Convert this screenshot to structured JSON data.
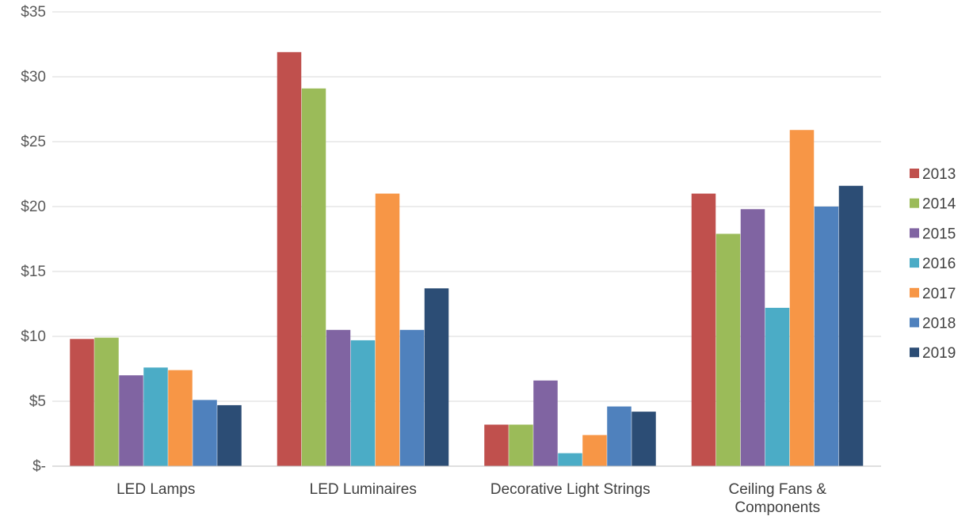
{
  "chart_data": {
    "type": "bar",
    "title": "",
    "xlabel": "",
    "ylabel": "",
    "ylim": [
      0,
      35
    ],
    "yticks": [
      0,
      5,
      10,
      15,
      20,
      25,
      30,
      35
    ],
    "ytick_labels": [
      "$-",
      "$5",
      "$10",
      "$15",
      "$20",
      "$25",
      "$30",
      "$35"
    ],
    "grid": true,
    "legend_position": "right",
    "categories": [
      [
        "LED Lamps"
      ],
      [
        "LED Luminaires"
      ],
      [
        "Decorative Light Strings"
      ],
      [
        "Ceiling Fans &",
        "Components"
      ]
    ],
    "series": [
      {
        "name": "2013",
        "color": "#c0504d",
        "values": [
          9.8,
          31.9,
          3.2,
          21.0
        ]
      },
      {
        "name": "2014",
        "color": "#9bbb59",
        "values": [
          9.9,
          29.1,
          3.2,
          17.9
        ]
      },
      {
        "name": "2015",
        "color": "#8064a2",
        "values": [
          7.0,
          10.5,
          6.6,
          19.8
        ]
      },
      {
        "name": "2016",
        "color": "#4bacc6",
        "values": [
          7.6,
          9.7,
          1.0,
          12.2
        ]
      },
      {
        "name": "2017",
        "color": "#f79646",
        "values": [
          7.4,
          21.0,
          2.4,
          25.9
        ]
      },
      {
        "name": "2018",
        "color": "#4f81bd",
        "values": [
          5.1,
          10.5,
          4.6,
          20.0
        ]
      },
      {
        "name": "2019",
        "color": "#2c4d75",
        "values": [
          4.7,
          13.7,
          4.2,
          21.6
        ]
      }
    ]
  }
}
